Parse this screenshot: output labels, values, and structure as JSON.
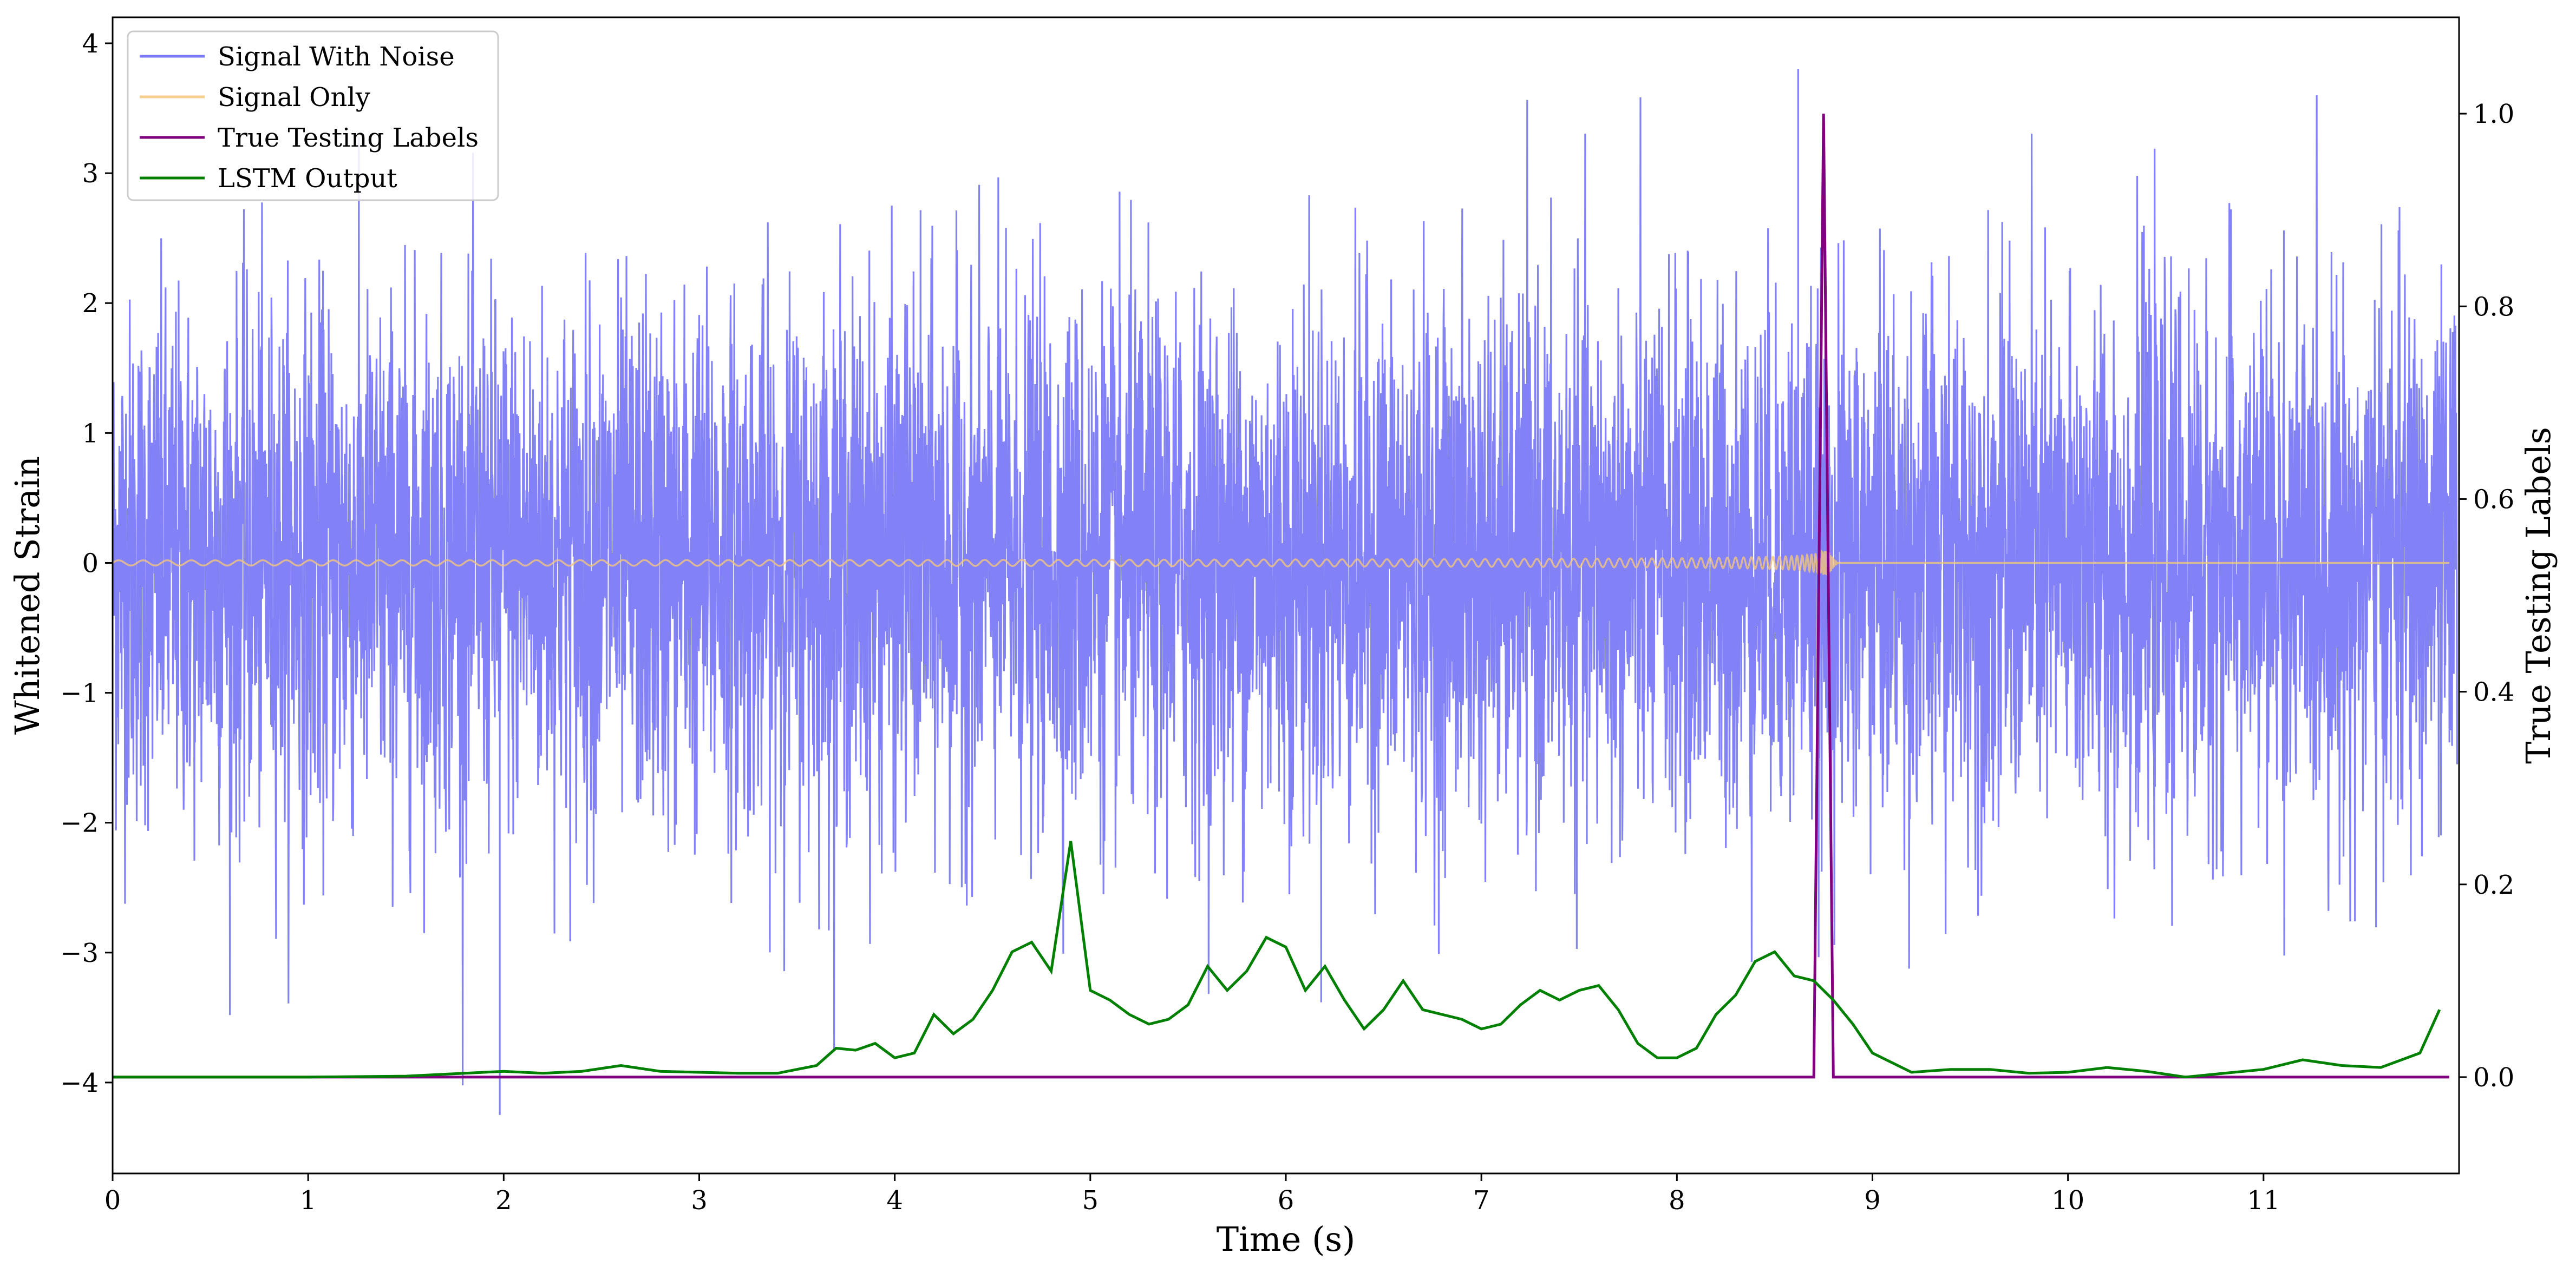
{
  "chart_data": {
    "type": "line",
    "title": "",
    "xlabel": "Time (s)",
    "ylabel_left": "Whitened Strain",
    "ylabel_right": "True Testing Labels",
    "xlim": [
      0,
      12
    ],
    "ylim_left": [
      -4.7,
      4.2
    ],
    "ylim_right": [
      -0.1,
      1.1
    ],
    "x_ticks": [
      0,
      1,
      2,
      3,
      4,
      5,
      6,
      7,
      8,
      9,
      10,
      11
    ],
    "y_ticks_left": [
      -4,
      -3,
      -2,
      -1,
      0,
      1,
      2,
      3,
      4
    ],
    "y_ticks_right": [
      0.0,
      0.2,
      0.4,
      0.6,
      0.8,
      1.0
    ],
    "x_tick_labels": [
      "0",
      "1",
      "2",
      "3",
      "4",
      "5",
      "6",
      "7",
      "8",
      "9",
      "10",
      "11"
    ],
    "y_tick_labels_left": [
      "−4",
      "−3",
      "−2",
      "−1",
      "0",
      "1",
      "2",
      "3",
      "4"
    ],
    "y_tick_labels_right": [
      "0.0",
      "0.2",
      "0.4",
      "0.6",
      "0.8",
      "1.0"
    ],
    "grid": false,
    "legend_position": "upper-left",
    "series": [
      {
        "name": "Signal With Noise",
        "axis": "left",
        "color": "#7b7bf6",
        "kind": "noise",
        "typical_amplitude": 1.0,
        "extreme_range": [
          -4.25,
          3.8
        ],
        "note_values": [
          [
            1.98,
            -4.25
          ],
          [
            8.62,
            3.8
          ]
        ]
      },
      {
        "name": "Signal Only",
        "axis": "left",
        "color": "#f5c77e",
        "kind": "chirp",
        "start_amplitude": 0.02,
        "merger_time": 8.75,
        "merger_amplitude": 0.55,
        "end_time": 8.82
      },
      {
        "name": "True Testing Labels",
        "axis": "right",
        "color": "#800080",
        "x": [
          0,
          8.7,
          8.75,
          8.8,
          11.95
        ],
        "values": [
          0,
          0,
          1.0,
          0,
          0
        ]
      },
      {
        "name": "LSTM Output",
        "axis": "right",
        "color": "#008000",
        "x": [
          0,
          1.0,
          1.5,
          1.8,
          2.0,
          2.2,
          2.4,
          2.6,
          2.8,
          3.0,
          3.2,
          3.4,
          3.6,
          3.7,
          3.8,
          3.9,
          4.0,
          4.1,
          4.2,
          4.3,
          4.4,
          4.5,
          4.6,
          4.7,
          4.8,
          4.9,
          5.0,
          5.1,
          5.2,
          5.3,
          5.4,
          5.5,
          5.6,
          5.7,
          5.8,
          5.9,
          6.0,
          6.1,
          6.2,
          6.3,
          6.4,
          6.5,
          6.6,
          6.7,
          6.8,
          6.9,
          7.0,
          7.1,
          7.2,
          7.3,
          7.4,
          7.5,
          7.6,
          7.7,
          7.8,
          7.9,
          8.0,
          8.1,
          8.2,
          8.3,
          8.4,
          8.5,
          8.6,
          8.7,
          8.8,
          8.9,
          9.0,
          9.2,
          9.4,
          9.6,
          9.8,
          10.0,
          10.2,
          10.4,
          10.6,
          10.8,
          11.0,
          11.2,
          11.4,
          11.6,
          11.8,
          11.9
        ],
        "values": [
          0.0,
          0.0,
          0.001,
          0.004,
          0.006,
          0.004,
          0.006,
          0.012,
          0.006,
          0.005,
          0.004,
          0.004,
          0.012,
          0.03,
          0.028,
          0.035,
          0.02,
          0.025,
          0.065,
          0.045,
          0.06,
          0.09,
          0.13,
          0.14,
          0.11,
          0.245,
          0.09,
          0.08,
          0.065,
          0.055,
          0.06,
          0.075,
          0.115,
          0.09,
          0.11,
          0.145,
          0.135,
          0.09,
          0.115,
          0.08,
          0.05,
          0.07,
          0.1,
          0.07,
          0.065,
          0.06,
          0.05,
          0.055,
          0.075,
          0.09,
          0.08,
          0.09,
          0.095,
          0.07,
          0.035,
          0.02,
          0.02,
          0.03,
          0.065,
          0.085,
          0.12,
          0.13,
          0.105,
          0.1,
          0.08,
          0.055,
          0.025,
          0.005,
          0.008,
          0.008,
          0.004,
          0.005,
          0.01,
          0.006,
          0.0,
          0.004,
          0.008,
          0.018,
          0.012,
          0.01,
          0.025,
          0.07
        ]
      }
    ]
  }
}
